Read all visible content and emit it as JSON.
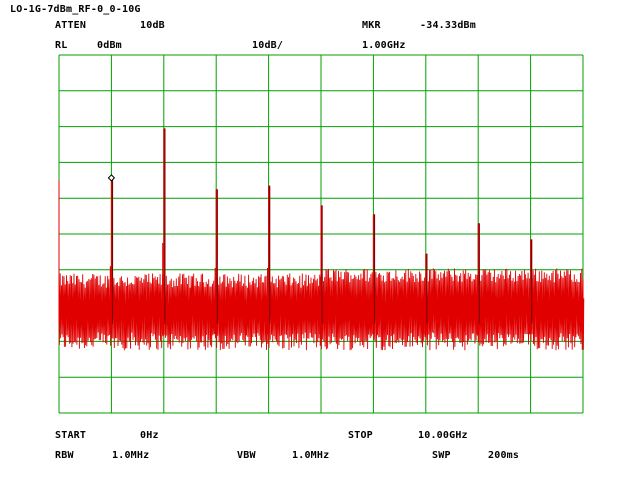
{
  "header": {
    "title": "LO-1G-7dBm_RF-0_0-10G",
    "atten_label": "ATTEN",
    "atten_value": "10dB",
    "mkr_label": "MKR",
    "mkr_value": "-34.33dBm",
    "rl_label": "RL",
    "rl_value": "0dBm",
    "scale": "10dB/",
    "mkr_freq": "1.00GHz"
  },
  "footer": {
    "start_label": "START",
    "start_value": "0Hz",
    "stop_label": "STOP",
    "stop_value": "10.00GHz",
    "rbw_label": "RBW",
    "rbw_value": "1.0MHz",
    "vbw_label": "VBW",
    "vbw_value": "1.0MHz",
    "swp_label": "SWP",
    "swp_value": "200ms"
  },
  "colors": {
    "grid": "#00a000",
    "trace": "#e00000",
    "trace_peak": "#800000"
  },
  "chart_data": {
    "type": "line",
    "title": "",
    "x_unit": "GHz",
    "y_unit": "dBm",
    "xlim": [
      0,
      10
    ],
    "ylim": [
      -100,
      0
    ],
    "grid": true,
    "x_divisions": 10,
    "y_divisions": 10,
    "noise_floor_dbm": [
      -80,
      -63
    ],
    "marker": {
      "x": 1.0,
      "y": -34.33
    },
    "peaks": [
      {
        "x": 1.0,
        "y": -34.33
      },
      {
        "x": 2.0,
        "y": -20.5
      },
      {
        "x": 3.0,
        "y": -37.5
      },
      {
        "x": 4.0,
        "y": -36.5
      },
      {
        "x": 5.0,
        "y": -42.0
      },
      {
        "x": 6.0,
        "y": -44.5
      },
      {
        "x": 7.0,
        "y": -55.5
      },
      {
        "x": 8.0,
        "y": -47.0
      },
      {
        "x": 9.0,
        "y": -51.5
      }
    ],
    "peak_shoulders": [
      {
        "x": 1.0,
        "y": -59.0
      },
      {
        "x": 2.0,
        "y": -52.5
      },
      {
        "x": 3.0,
        "y": -59.5
      },
      {
        "x": 4.0,
        "y": -59.5
      },
      {
        "x": 5.0,
        "y": -62.0
      },
      {
        "x": 7.0,
        "y": -65.0
      },
      {
        "x": 8.0,
        "y": -64.5
      },
      {
        "x": 9.0,
        "y": -65.0
      }
    ]
  }
}
